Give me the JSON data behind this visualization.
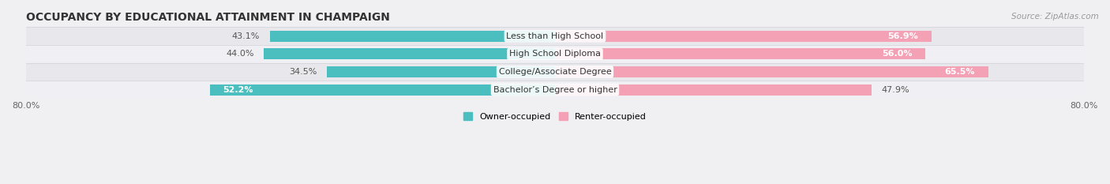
{
  "title": "OCCUPANCY BY EDUCATIONAL ATTAINMENT IN CHAMPAIGN",
  "source": "Source: ZipAtlas.com",
  "categories": [
    "Less than High School",
    "High School Diploma",
    "College/Associate Degree",
    "Bachelor’s Degree or higher"
  ],
  "owner_values": [
    43.1,
    44.0,
    34.5,
    52.2
  ],
  "renter_values": [
    56.9,
    56.0,
    65.5,
    47.9
  ],
  "owner_color": "#4BBFBF",
  "renter_color": "#F4A0B5",
  "xlim_left": -80,
  "xlim_right": 80,
  "bar_height": 0.62,
  "title_fontsize": 10,
  "source_fontsize": 7.5,
  "label_fontsize": 8,
  "tick_fontsize": 8,
  "legend_fontsize": 8
}
